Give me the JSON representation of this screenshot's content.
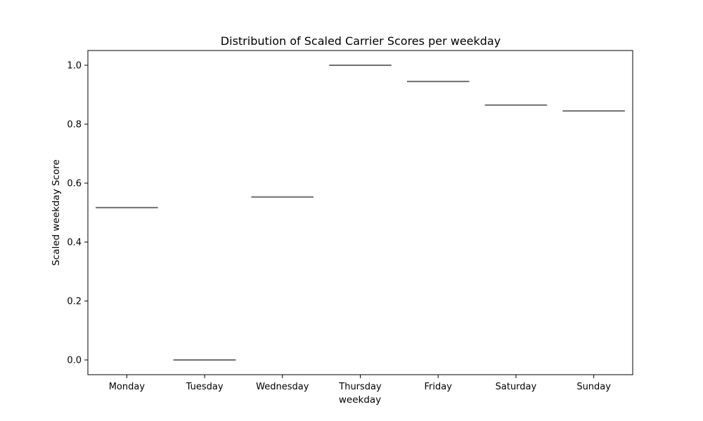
{
  "chart_data": {
    "type": "box",
    "title": "Distribution of Scaled Carrier Scores per weekday",
    "xlabel": "weekday",
    "ylabel": "Scaled weekday Score",
    "categories": [
      "Monday",
      "Tuesday",
      "Wednesday",
      "Thursday",
      "Friday",
      "Saturday",
      "Sunday"
    ],
    "values": [
      0.517,
      0.0,
      0.553,
      1.0,
      0.945,
      0.865,
      0.845
    ],
    "ylim": [
      -0.05,
      1.05
    ],
    "yticks": [
      0.0,
      0.2,
      0.4,
      0.6,
      0.8,
      1.0
    ],
    "ytick_labels": [
      "0.0",
      "0.2",
      "0.4",
      "0.6",
      "0.8",
      "1.0"
    ],
    "grid": false,
    "line_color": "#6e6e6e"
  }
}
